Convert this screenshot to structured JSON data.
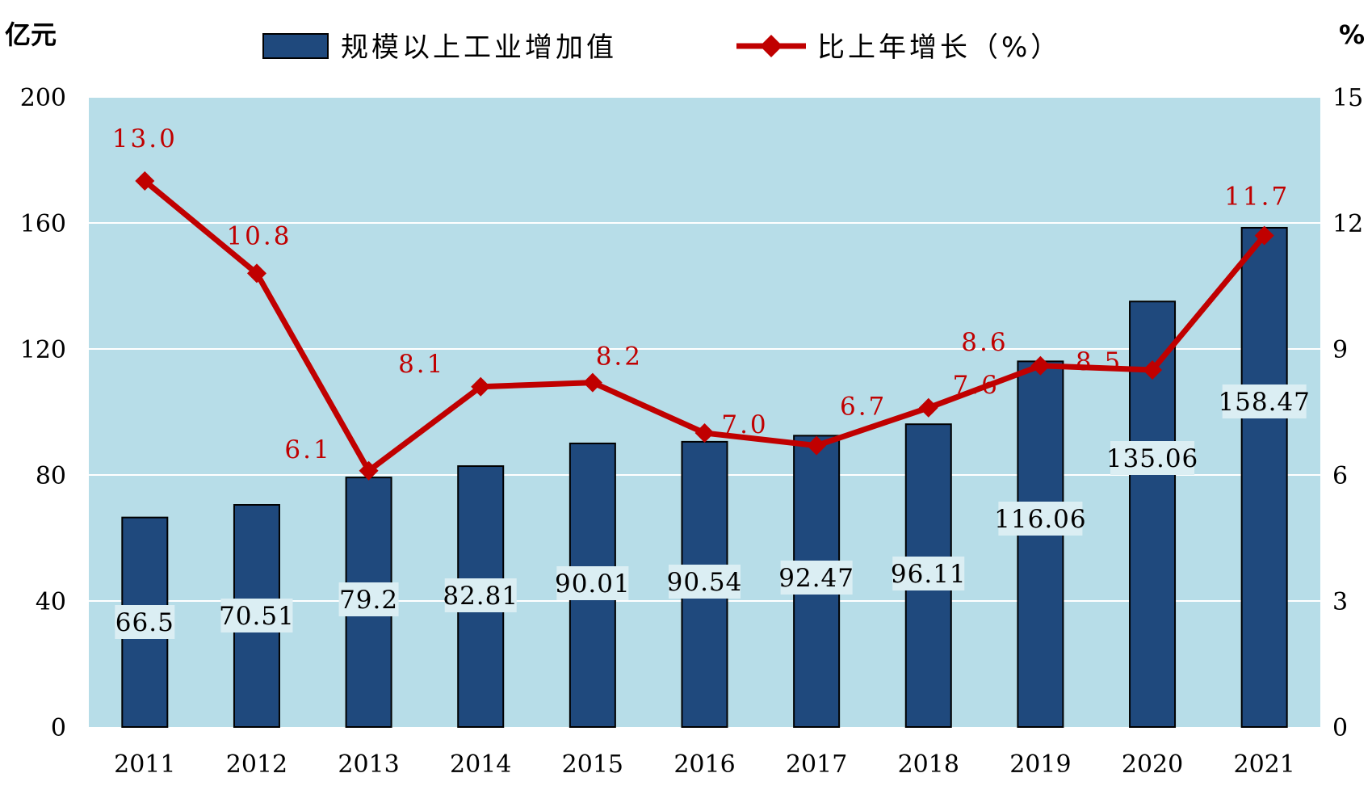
{
  "chart_data": {
    "type": "bar",
    "categories": [
      "2011",
      "2012",
      "2013",
      "2014",
      "2015",
      "2016",
      "2017",
      "2018",
      "2019",
      "2020",
      "2021"
    ],
    "series": [
      {
        "name": "规模以上工业增加值",
        "type": "bar",
        "axis": "left",
        "color": "#1f497d",
        "values": [
          66.5,
          70.51,
          79.2,
          82.81,
          90.01,
          90.54,
          92.47,
          96.11,
          116.06,
          135.06,
          158.47
        ],
        "labels": [
          "66.5",
          "70.51",
          "79.2",
          "82.81",
          "90.01",
          "90.54",
          "92.47",
          "96.11",
          "116.06",
          "135.06",
          "158.47"
        ]
      },
      {
        "name": "比上年增长（%）",
        "type": "line",
        "axis": "right",
        "color": "#c00000",
        "values": [
          13.0,
          10.8,
          6.1,
          8.1,
          8.2,
          7.0,
          6.7,
          7.6,
          8.6,
          8.5,
          11.7
        ],
        "labels": [
          "13.0",
          "10.8",
          "6.1",
          "8.1",
          "8.2",
          "7.0",
          "6.7",
          "7.6",
          "8.6",
          "8.5",
          "11.7"
        ]
      }
    ],
    "y_left": {
      "unit": "亿元",
      "ylim": [
        0,
        200
      ],
      "ticks": [
        "0",
        "40",
        "80",
        "120",
        "160",
        "200"
      ]
    },
    "y_right": {
      "unit": "%",
      "ylim": [
        0,
        15
      ],
      "ticks": [
        "0",
        "3",
        "6",
        "9",
        "12",
        "15"
      ]
    },
    "grid": true,
    "legend": "top",
    "plot_background": "#b7dde8"
  }
}
